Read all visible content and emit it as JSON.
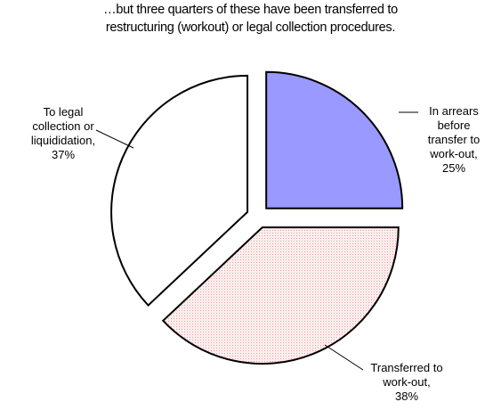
{
  "chart_data": {
    "type": "pie",
    "title": [
      "…but three quarters of these have been transferred to",
      "restructuring (workout) or legal collection procedures."
    ],
    "categories": [
      "In arrears before transfer to work-out,",
      "Transferred to work-out,",
      "To legal collection or liquididation,"
    ],
    "values": [
      25,
      38,
      37
    ],
    "value_labels": [
      "25%",
      "38%",
      "37%"
    ],
    "colors": [
      "#9999ff",
      "#fce6e6",
      "#ffffff"
    ]
  }
}
